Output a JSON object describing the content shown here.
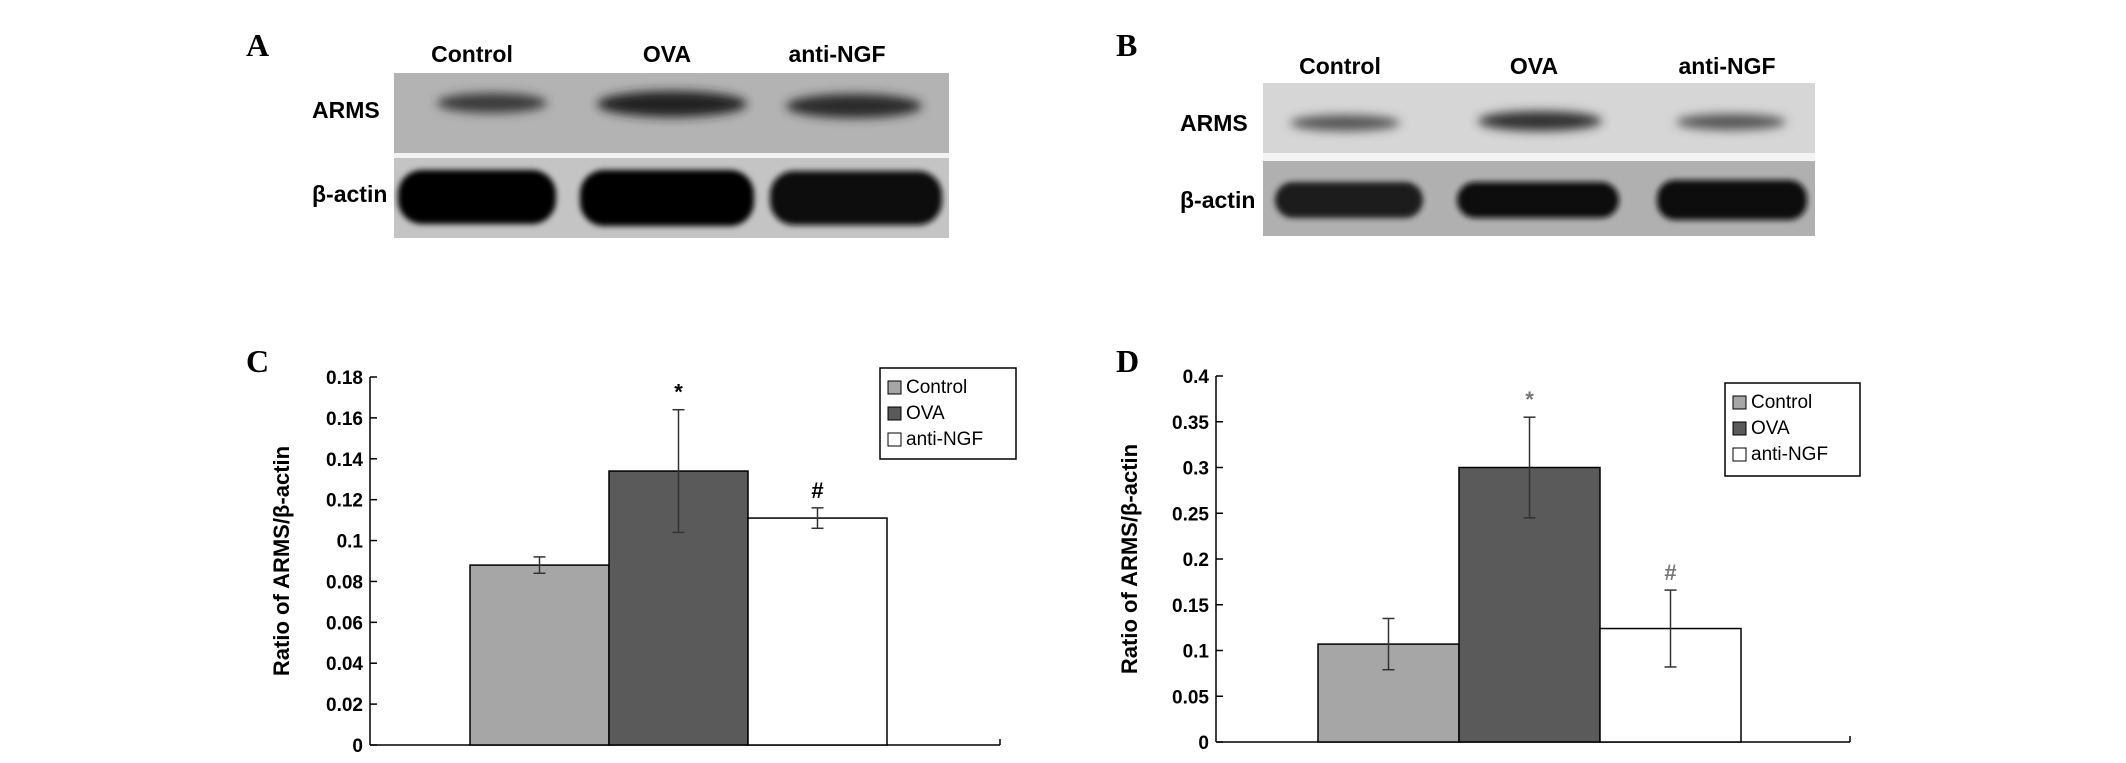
{
  "panels": {
    "A": {
      "letter": "A",
      "lanes": [
        "Control",
        "OVA",
        "anti-NGF"
      ],
      "rows": [
        "ARMS",
        "β-actin"
      ]
    },
    "B": {
      "letter": "B",
      "lanes": [
        "Control",
        "OVA",
        "anti-NGF"
      ],
      "rows": [
        "ARMS",
        "β-actin"
      ]
    }
  },
  "chart_data": [
    {
      "panel": "C",
      "type": "bar",
      "categories": [
        "Control",
        "OVA",
        "anti-NGF"
      ],
      "values": [
        0.088,
        0.134,
        0.111
      ],
      "errors": [
        0.004,
        0.03,
        0.005
      ],
      "significance": [
        "",
        "*",
        "#"
      ],
      "colors": [
        "#a6a6a6",
        "#5a5a5a",
        "#ffffff"
      ],
      "ylabel": "Ratio of ARMS/β-actin",
      "ylim": [
        0,
        0.18
      ],
      "yticks": [
        "0",
        "0.02",
        "0.04",
        "0.06",
        "0.08",
        "0.1",
        "0.12",
        "0.14",
        "0.16",
        "0.18"
      ],
      "legend": [
        "Control",
        "OVA",
        "anti-NGF"
      ],
      "legend_position": "top-right",
      "grid": false
    },
    {
      "panel": "D",
      "type": "bar",
      "categories": [
        "Control",
        "OVA",
        "anti-NGF"
      ],
      "values": [
        0.107,
        0.3,
        0.124
      ],
      "errors": [
        0.028,
        0.055,
        0.042
      ],
      "significance": [
        "",
        "*",
        "#"
      ],
      "colors": [
        "#a6a6a6",
        "#5a5a5a",
        "#ffffff"
      ],
      "ylabel": "Ratio of ARMS/β-actin",
      "ylim": [
        0,
        0.4
      ],
      "yticks": [
        "0",
        "0.05",
        "0.1",
        "0.15",
        "0.2",
        "0.25",
        "0.3",
        "0.35",
        "0.4"
      ],
      "legend": [
        "Control",
        "OVA",
        "anti-NGF"
      ],
      "legend_position": "top-right",
      "grid": false
    }
  ]
}
